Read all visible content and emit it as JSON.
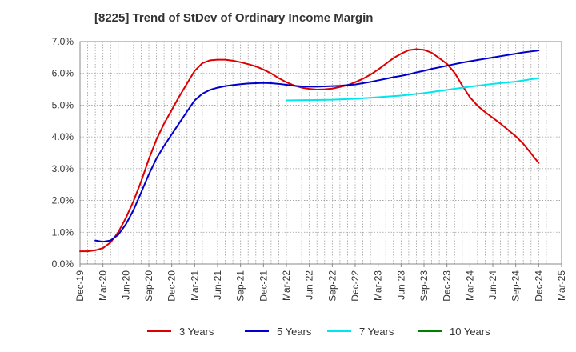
{
  "chart_data": {
    "type": "line",
    "title": "[8225]  Trend of StDev of Ordinary Income Margin",
    "xlabel": "",
    "ylabel": "",
    "ylim": [
      0,
      7
    ],
    "y_ticks": [
      0,
      1,
      2,
      3,
      4,
      5,
      6,
      7
    ],
    "y_tick_labels": [
      "0.0%",
      "1.0%",
      "2.0%",
      "3.0%",
      "4.0%",
      "5.0%",
      "6.0%",
      "7.0%"
    ],
    "x_range": [
      "2019-12",
      "2025-03"
    ],
    "x_tick_labels": [
      "Dec-19",
      "Mar-20",
      "Jun-20",
      "Sep-20",
      "Dec-20",
      "Mar-21",
      "Jun-21",
      "Sep-21",
      "Dec-21",
      "Mar-22",
      "Jun-22",
      "Sep-22",
      "Dec-22",
      "Mar-23",
      "Jun-23",
      "Sep-23",
      "Dec-23",
      "Mar-24",
      "Jun-24",
      "Sep-24",
      "Dec-24",
      "Mar-25"
    ],
    "grid": true,
    "legend_position": "bottom",
    "series": [
      {
        "name": "3 Years",
        "color": "#dd0000",
        "points": [
          [
            "2019-12",
            0.4
          ],
          [
            "2020-01",
            0.4
          ],
          [
            "2020-02",
            0.43
          ],
          [
            "2020-03",
            0.5
          ],
          [
            "2020-04",
            0.68
          ],
          [
            "2020-05",
            1.0
          ],
          [
            "2020-06",
            1.45
          ],
          [
            "2020-07",
            1.98
          ],
          [
            "2020-08",
            2.6
          ],
          [
            "2020-09",
            3.3
          ],
          [
            "2020-10",
            3.92
          ],
          [
            "2020-11",
            4.42
          ],
          [
            "2020-12",
            4.85
          ],
          [
            "2021-01",
            5.28
          ],
          [
            "2021-02",
            5.68
          ],
          [
            "2021-03",
            6.08
          ],
          [
            "2021-04",
            6.32
          ],
          [
            "2021-05",
            6.41
          ],
          [
            "2021-06",
            6.43
          ],
          [
            "2021-07",
            6.43
          ],
          [
            "2021-08",
            6.4
          ],
          [
            "2021-09",
            6.35
          ],
          [
            "2021-10",
            6.29
          ],
          [
            "2021-11",
            6.22
          ],
          [
            "2021-12",
            6.12
          ],
          [
            "2022-01",
            6.0
          ],
          [
            "2022-02",
            5.85
          ],
          [
            "2022-03",
            5.72
          ],
          [
            "2022-04",
            5.62
          ],
          [
            "2022-05",
            5.55
          ],
          [
            "2022-06",
            5.51
          ],
          [
            "2022-07",
            5.49
          ],
          [
            "2022-08",
            5.5
          ],
          [
            "2022-09",
            5.52
          ],
          [
            "2022-10",
            5.57
          ],
          [
            "2022-11",
            5.63
          ],
          [
            "2022-12",
            5.72
          ],
          [
            "2023-01",
            5.83
          ],
          [
            "2023-02",
            5.96
          ],
          [
            "2023-03",
            6.12
          ],
          [
            "2023-04",
            6.3
          ],
          [
            "2023-05",
            6.48
          ],
          [
            "2023-06",
            6.62
          ],
          [
            "2023-07",
            6.73
          ],
          [
            "2023-08",
            6.76
          ],
          [
            "2023-09",
            6.74
          ],
          [
            "2023-10",
            6.65
          ],
          [
            "2023-11",
            6.48
          ],
          [
            "2023-12",
            6.3
          ],
          [
            "2024-01",
            6.02
          ],
          [
            "2024-02",
            5.62
          ],
          [
            "2024-03",
            5.25
          ],
          [
            "2024-04",
            4.98
          ],
          [
            "2024-05",
            4.78
          ],
          [
            "2024-06",
            4.6
          ],
          [
            "2024-07",
            4.42
          ],
          [
            "2024-08",
            4.22
          ],
          [
            "2024-09",
            4.02
          ],
          [
            "2024-10",
            3.78
          ],
          [
            "2024-11",
            3.48
          ],
          [
            "2024-12",
            3.18
          ]
        ]
      },
      {
        "name": "5 Years",
        "color": "#0000cc",
        "points": [
          [
            "2020-02",
            0.74
          ],
          [
            "2020-03",
            0.7
          ],
          [
            "2020-04",
            0.74
          ],
          [
            "2020-05",
            0.92
          ],
          [
            "2020-06",
            1.25
          ],
          [
            "2020-07",
            1.7
          ],
          [
            "2020-08",
            2.25
          ],
          [
            "2020-09",
            2.82
          ],
          [
            "2020-10",
            3.32
          ],
          [
            "2020-11",
            3.72
          ],
          [
            "2020-12",
            4.08
          ],
          [
            "2021-01",
            4.44
          ],
          [
            "2021-02",
            4.8
          ],
          [
            "2021-03",
            5.15
          ],
          [
            "2021-04",
            5.36
          ],
          [
            "2021-05",
            5.48
          ],
          [
            "2021-06",
            5.55
          ],
          [
            "2021-07",
            5.6
          ],
          [
            "2021-08",
            5.63
          ],
          [
            "2021-09",
            5.66
          ],
          [
            "2021-10",
            5.68
          ],
          [
            "2021-11",
            5.69
          ],
          [
            "2021-12",
            5.7
          ],
          [
            "2022-01",
            5.69
          ],
          [
            "2022-02",
            5.67
          ],
          [
            "2022-03",
            5.64
          ],
          [
            "2022-04",
            5.61
          ],
          [
            "2022-05",
            5.59
          ],
          [
            "2022-06",
            5.58
          ],
          [
            "2022-07",
            5.58
          ],
          [
            "2022-08",
            5.59
          ],
          [
            "2022-09",
            5.6
          ],
          [
            "2022-10",
            5.61
          ],
          [
            "2022-11",
            5.63
          ],
          [
            "2022-12",
            5.65
          ],
          [
            "2023-01",
            5.69
          ],
          [
            "2023-02",
            5.73
          ],
          [
            "2023-03",
            5.78
          ],
          [
            "2023-04",
            5.83
          ],
          [
            "2023-05",
            5.88
          ],
          [
            "2023-06",
            5.92
          ],
          [
            "2023-07",
            5.97
          ],
          [
            "2023-08",
            6.03
          ],
          [
            "2023-09",
            6.08
          ],
          [
            "2023-10",
            6.14
          ],
          [
            "2023-11",
            6.19
          ],
          [
            "2023-12",
            6.24
          ],
          [
            "2024-01",
            6.29
          ],
          [
            "2024-02",
            6.34
          ],
          [
            "2024-03",
            6.38
          ],
          [
            "2024-04",
            6.42
          ],
          [
            "2024-05",
            6.46
          ],
          [
            "2024-06",
            6.5
          ],
          [
            "2024-07",
            6.54
          ],
          [
            "2024-08",
            6.58
          ],
          [
            "2024-09",
            6.62
          ],
          [
            "2024-10",
            6.66
          ],
          [
            "2024-11",
            6.69
          ],
          [
            "2024-12",
            6.72
          ]
        ]
      },
      {
        "name": "7 Years",
        "color": "#00e5ee",
        "points": [
          [
            "2022-03",
            5.15
          ],
          [
            "2022-06",
            5.16
          ],
          [
            "2022-09",
            5.17
          ],
          [
            "2022-12",
            5.2
          ],
          [
            "2023-03",
            5.25
          ],
          [
            "2023-06",
            5.3
          ],
          [
            "2023-09",
            5.38
          ],
          [
            "2023-12",
            5.48
          ],
          [
            "2024-03",
            5.58
          ],
          [
            "2024-06",
            5.67
          ],
          [
            "2024-09",
            5.74
          ],
          [
            "2024-12",
            5.85
          ]
        ]
      },
      {
        "name": "10 Years",
        "color": "#008000",
        "points": []
      }
    ]
  }
}
